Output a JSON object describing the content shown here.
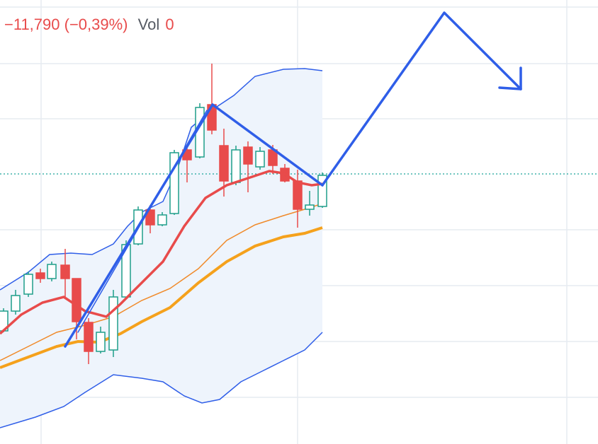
{
  "header": {
    "change": "−11,790 (−0,39%)",
    "volume_label": "Vol",
    "volume_value": "0"
  }
}
